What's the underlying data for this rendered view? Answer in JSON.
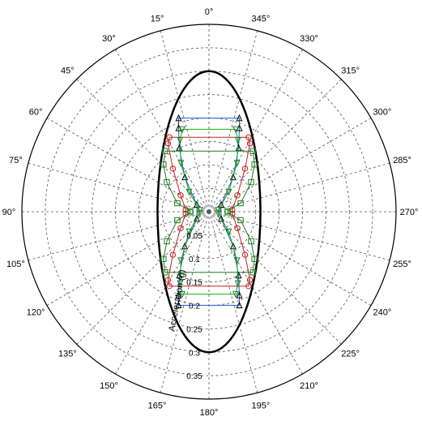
{
  "chart_data": {
    "type": "polar",
    "angle_direction": "counterclockwise",
    "zero_position": "top",
    "angle_ticks": [
      0,
      15,
      30,
      45,
      60,
      75,
      90,
      105,
      120,
      135,
      150,
      165,
      180,
      195,
      210,
      225,
      240,
      255,
      270,
      285,
      300,
      315,
      330,
      345
    ],
    "angle_tick_labels": [
      "0°",
      "15°",
      "30°",
      "45°",
      "60°",
      "75°",
      "90°",
      "105°",
      "120°",
      "135°",
      "150°",
      "165°",
      "180°",
      "195°",
      "210°",
      "225°",
      "240°",
      "255°",
      "270°",
      "285°",
      "300°",
      "315°",
      "330°",
      "345°"
    ],
    "radial_range": [
      0,
      0.4
    ],
    "radial_ticks": [
      0.05,
      0.1,
      0.15,
      0.2,
      0.25,
      0.3,
      0.35
    ],
    "radial_tick_labels": [
      "0.05",
      "0.1",
      "0.15",
      "0.2",
      "0.25",
      "0.3",
      "0.35"
    ],
    "radial_axis_label": "Acceleration (g)",
    "grid": true,
    "colors": {
      "black": "#000000",
      "blue": "#1a5fd6",
      "red": "#c81e1e",
      "green": "#12b012",
      "darkgreen": "#1e7a1e",
      "grid": "#555555"
    },
    "series": [
      {
        "color": "black",
        "marker": "none",
        "stroke_width": 2.5,
        "function": "ellipse",
        "semi_axis_vertical": 0.3,
        "semi_axis_horizontal": 0.11
      },
      {
        "color": "blue",
        "marker": "triangle-up",
        "marker_color": "#000000",
        "points": [
          {
            "angle": 18,
            "r": 0.21
          },
          {
            "angle": 20,
            "r": 0.19
          },
          {
            "angle": 25,
            "r": 0.15
          },
          {
            "angle": 35,
            "r": 0.09
          },
          {
            "angle": 60,
            "r": 0.03
          },
          {
            "angle": 120,
            "r": 0.03
          },
          {
            "angle": 145,
            "r": 0.09
          },
          {
            "angle": 155,
            "r": 0.15
          },
          {
            "angle": 160,
            "r": 0.19
          },
          {
            "angle": 162,
            "r": 0.21
          },
          {
            "angle": 198,
            "r": 0.21
          },
          {
            "angle": 200,
            "r": 0.19
          },
          {
            "angle": 205,
            "r": 0.15
          },
          {
            "angle": 215,
            "r": 0.09
          },
          {
            "angle": 240,
            "r": 0.03
          },
          {
            "angle": 300,
            "r": 0.03
          },
          {
            "angle": 325,
            "r": 0.09
          },
          {
            "angle": 335,
            "r": 0.15
          },
          {
            "angle": 340,
            "r": 0.19
          },
          {
            "angle": 342,
            "r": 0.21
          }
        ]
      },
      {
        "color": "red",
        "marker": "circle",
        "points": [
          {
            "angle": 28,
            "r": 0.18
          },
          {
            "angle": 31,
            "r": 0.17
          },
          {
            "angle": 40,
            "r": 0.12
          },
          {
            "angle": 60,
            "r": 0.07
          },
          {
            "angle": 85,
            "r": 0.05
          },
          {
            "angle": 95,
            "r": 0.05
          },
          {
            "angle": 120,
            "r": 0.07
          },
          {
            "angle": 140,
            "r": 0.12
          },
          {
            "angle": 149,
            "r": 0.17
          },
          {
            "angle": 152,
            "r": 0.18
          },
          {
            "angle": 208,
            "r": 0.18
          },
          {
            "angle": 211,
            "r": 0.17
          },
          {
            "angle": 220,
            "r": 0.12
          },
          {
            "angle": 240,
            "r": 0.07
          },
          {
            "angle": 265,
            "r": 0.05
          },
          {
            "angle": 275,
            "r": 0.05
          },
          {
            "angle": 300,
            "r": 0.07
          },
          {
            "angle": 320,
            "r": 0.12
          },
          {
            "angle": 329,
            "r": 0.17
          },
          {
            "angle": 332,
            "r": 0.18
          }
        ]
      },
      {
        "color": "green",
        "marker": "triangle-down",
        "points": [
          {
            "angle": 18,
            "r": 0.185
          },
          {
            "angle": 22,
            "r": 0.165
          },
          {
            "angle": 30,
            "r": 0.12
          },
          {
            "angle": 45,
            "r": 0.06
          },
          {
            "angle": 80,
            "r": 0.02
          },
          {
            "angle": 100,
            "r": 0.02
          },
          {
            "angle": 135,
            "r": 0.06
          },
          {
            "angle": 150,
            "r": 0.12
          },
          {
            "angle": 158,
            "r": 0.165
          },
          {
            "angle": 162,
            "r": 0.185
          },
          {
            "angle": 198,
            "r": 0.185
          },
          {
            "angle": 202,
            "r": 0.165
          },
          {
            "angle": 210,
            "r": 0.12
          },
          {
            "angle": 225,
            "r": 0.06
          },
          {
            "angle": 260,
            "r": 0.02
          },
          {
            "angle": 280,
            "r": 0.02
          },
          {
            "angle": 315,
            "r": 0.06
          },
          {
            "angle": 330,
            "r": 0.12
          },
          {
            "angle": 338,
            "r": 0.165
          },
          {
            "angle": 342,
            "r": 0.185
          }
        ]
      },
      {
        "color": "darkgreen",
        "marker": "square",
        "points": [
          {
            "angle": 36,
            "r": 0.16
          },
          {
            "angle": 44,
            "r": 0.14
          },
          {
            "angle": 55,
            "r": 0.11
          },
          {
            "angle": 75,
            "r": 0.07
          },
          {
            "angle": 88,
            "r": 0.04
          },
          {
            "angle": 92,
            "r": 0.04
          },
          {
            "angle": 105,
            "r": 0.07
          },
          {
            "angle": 125,
            "r": 0.11
          },
          {
            "angle": 136,
            "r": 0.14
          },
          {
            "angle": 144,
            "r": 0.16
          },
          {
            "angle": 216,
            "r": 0.16
          },
          {
            "angle": 224,
            "r": 0.14
          },
          {
            "angle": 235,
            "r": 0.11
          },
          {
            "angle": 255,
            "r": 0.07
          },
          {
            "angle": 268,
            "r": 0.04
          },
          {
            "angle": 272,
            "r": 0.04
          },
          {
            "angle": 285,
            "r": 0.07
          },
          {
            "angle": 305,
            "r": 0.11
          },
          {
            "angle": 316,
            "r": 0.14
          },
          {
            "angle": 324,
            "r": 0.16
          }
        ]
      }
    ]
  }
}
